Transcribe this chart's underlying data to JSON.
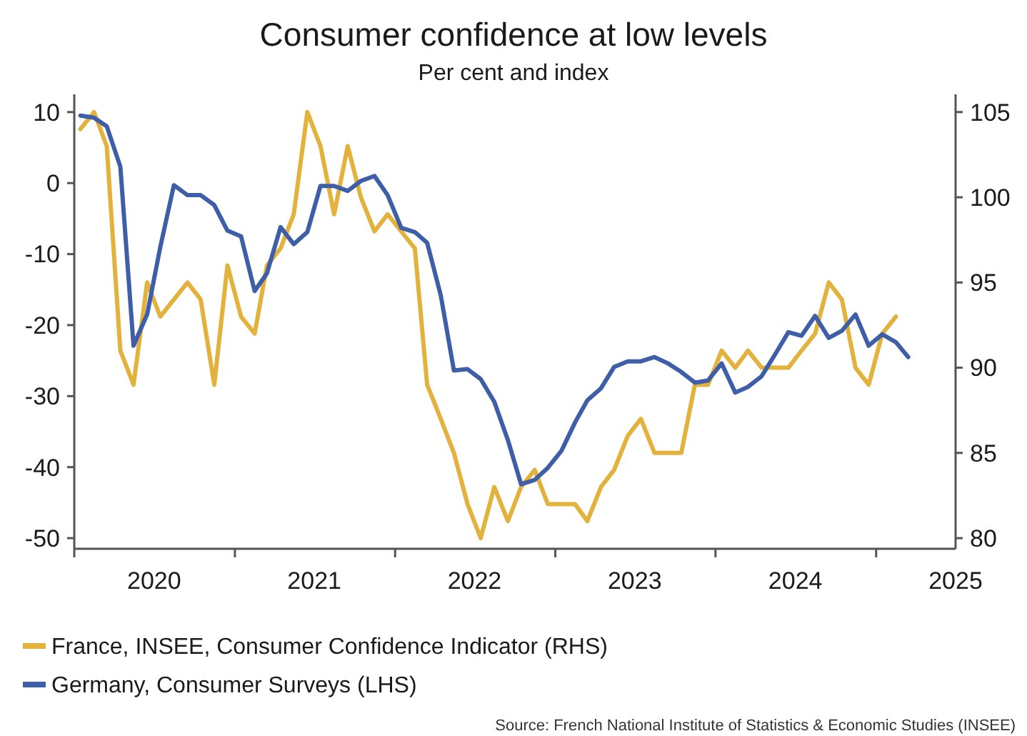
{
  "chart_data": {
    "type": "line",
    "title": "Consumer confidence at low levels",
    "subtitle": "Per cent and index",
    "x": [
      "2020-01-15",
      "2020-02-15",
      "2020-03-15",
      "2020-04-15",
      "2020-05-15",
      "2020-06-15",
      "2020-07-15",
      "2020-08-15",
      "2020-09-15",
      "2020-10-15",
      "2020-11-15",
      "2020-12-15",
      "2021-01-15",
      "2021-02-15",
      "2021-03-15",
      "2021-04-15",
      "2021-05-15",
      "2021-06-15",
      "2021-07-15",
      "2021-08-15",
      "2021-09-15",
      "2021-10-15",
      "2021-11-15",
      "2021-12-15",
      "2022-01-15",
      "2022-02-15",
      "2022-03-15",
      "2022-04-15",
      "2022-05-15",
      "2022-06-15",
      "2022-07-15",
      "2022-08-15",
      "2022-09-15",
      "2022-10-15",
      "2022-11-15",
      "2022-12-15",
      "2023-01-15",
      "2023-02-15",
      "2023-03-15",
      "2023-04-15",
      "2023-05-15",
      "2023-06-15",
      "2023-07-15",
      "2023-08-15",
      "2023-09-15",
      "2023-10-15",
      "2023-11-15",
      "2023-12-15",
      "2024-01-15",
      "2024-02-15",
      "2024-03-15",
      "2024-04-15",
      "2024-05-15",
      "2024-06-15",
      "2024-07-15",
      "2024-08-15",
      "2024-09-15",
      "2024-10-15",
      "2024-11-15",
      "2024-12-15",
      "2025-01-15",
      "2025-02-15",
      "2025-03-15"
    ],
    "series": [
      {
        "name": "France, INSEE, Consumer Confidence Indicator (RHS)",
        "color": "#e3b23c",
        "axis": "y2",
        "values": [
          104,
          105,
          103,
          91,
          89,
          95,
          93,
          94,
          95,
          94,
          89,
          96,
          93,
          92,
          96,
          97,
          99,
          105,
          103,
          99,
          103,
          100,
          98,
          99,
          98,
          97,
          89,
          87,
          85,
          82,
          80,
          83,
          81,
          83,
          84,
          82,
          82,
          82,
          81,
          83,
          84,
          86,
          87,
          85,
          85,
          85,
          89,
          89,
          91,
          90,
          91,
          90,
          90,
          90,
          91,
          92,
          95,
          94,
          90,
          89,
          92,
          93,
          null
        ]
      },
      {
        "name": "Germany, Consumer Surveys (LHS)",
        "color": "#3f5ea8",
        "axis": "y",
        "values": [
          9.5,
          9.2,
          8,
          2.3,
          -22.9,
          -18.5,
          -9,
          -0.3,
          -1.7,
          -1.7,
          -3.1,
          -6.7,
          -7.5,
          -15.2,
          -12.7,
          -6.2,
          -8.6,
          -6.9,
          -0.4,
          -0.4,
          -1.1,
          0.3,
          1,
          -1.7,
          -6.3,
          -6.9,
          -8.4,
          -15.8,
          -26.4,
          -26.2,
          -27.6,
          -30.8,
          -36.2,
          -42.4,
          -41.8,
          -40.1,
          -37.7,
          -33.7,
          -30.6,
          -28.9,
          -25.9,
          -25.1,
          -25.1,
          -24.5,
          -25.4,
          -26.6,
          -28.1,
          -27.8,
          -25.4,
          -29.5,
          -28.7,
          -27.2,
          -24.2,
          -21,
          -21.5,
          -18.7,
          -21.8,
          -20.8,
          -18.5,
          -22.9,
          -21.3,
          -22.4,
          -24.5
        ]
      }
    ],
    "xlim": [
      "2020-01-01",
      "2025-07-01"
    ],
    "xticks": [
      {
        "value": "2020-01-01",
        "label": null
      },
      {
        "value": "2020-07-01",
        "label": "2020"
      },
      {
        "value": "2021-01-01",
        "label": null
      },
      {
        "value": "2021-07-01",
        "label": "2021"
      },
      {
        "value": "2022-01-01",
        "label": null
      },
      {
        "value": "2022-07-01",
        "label": "2022"
      },
      {
        "value": "2023-01-01",
        "label": null
      },
      {
        "value": "2023-07-01",
        "label": "2023"
      },
      {
        "value": "2024-01-01",
        "label": null
      },
      {
        "value": "2024-07-01",
        "label": "2024"
      },
      {
        "value": "2025-01-01",
        "label": null
      },
      {
        "value": "2025-07-01",
        "label": "2025"
      }
    ],
    "ylim": [
      -51.5,
      12.5
    ],
    "yticks": [
      -50,
      -40,
      -30,
      -20,
      -10,
      0,
      10
    ],
    "y2lim": [
      79.375,
      106.04
    ],
    "y2ticks": [
      80,
      85,
      90,
      95,
      100,
      105
    ],
    "grid": false,
    "legend": "bottom",
    "line_style": "solid",
    "marker": "none",
    "annotations": [
      "Source: French National Institute of Statistics & Economic Studies (INSEE)"
    ]
  }
}
